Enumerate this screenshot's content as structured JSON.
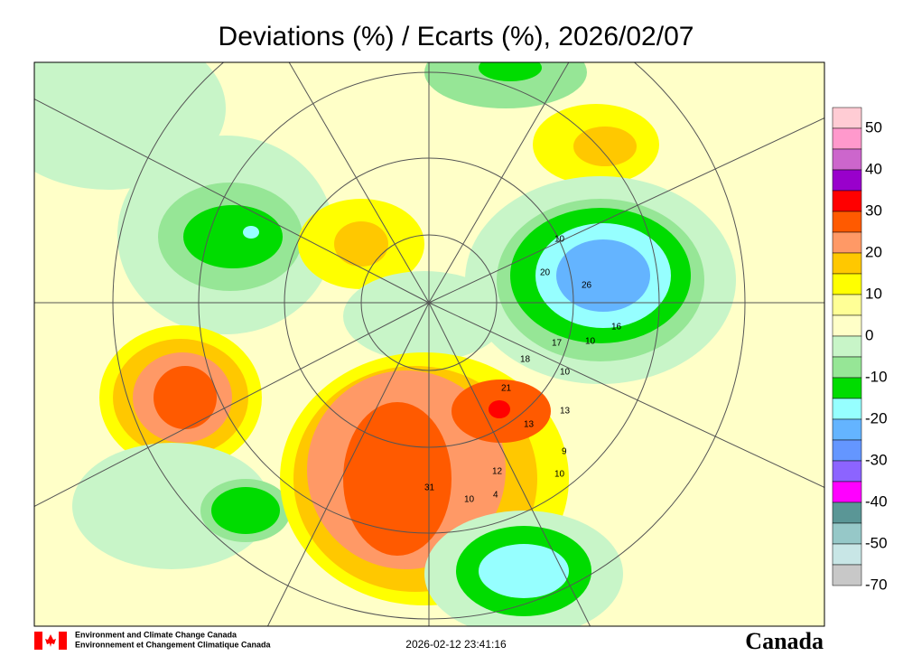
{
  "title": "Deviations (%) / Ecarts (%), 2026/02/07",
  "legend": {
    "labels": [
      50,
      40,
      30,
      20,
      10,
      0,
      -10,
      -20,
      -30,
      -40,
      -50,
      -70
    ],
    "colors": [
      "#ffccd4",
      "#ff99cc",
      "#cc66cc",
      "#9900cc",
      "#ff0000",
      "#ff5a00",
      "#ff9966",
      "#ffc800",
      "#ffff00",
      "#ffff96",
      "#ffffc8",
      "#c8f5c8",
      "#96e696",
      "#00dc00",
      "#96ffff",
      "#64b4ff",
      "#6496ff",
      "#8c64ff",
      "#ff00ff",
      "#5a9696",
      "#96c8c8",
      "#c8e6e6",
      "#c8c8c8"
    ]
  },
  "stations": [
    "31",
    "12",
    "10",
    "4",
    "13",
    "13",
    "9",
    "10",
    "17",
    "10",
    "16",
    "26",
    "20",
    "10",
    "10",
    "18",
    "21"
  ],
  "footer": {
    "org_en": "Environment and Climate Change Canada",
    "org_fr": "Environnement et Changement Climatique Canada",
    "timestamp": "2026-02-12 23:41:16",
    "wordmark": "Canada"
  }
}
